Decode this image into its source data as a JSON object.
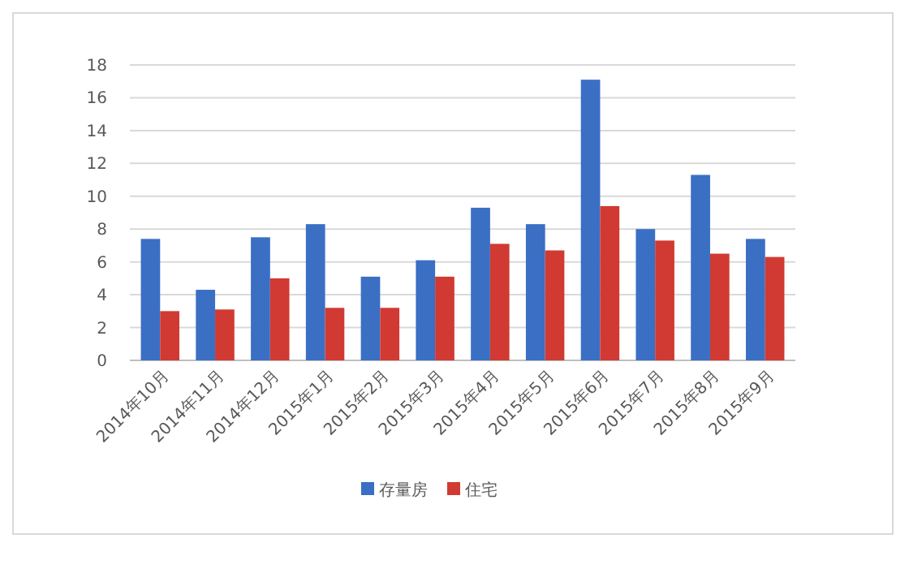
{
  "chart_data": {
    "type": "bar",
    "categories": [
      "2014年10月",
      "2014年11月",
      "2014年12月",
      "2015年1月",
      "2015年2月",
      "2015年3月",
      "2015年4月",
      "2015年5月",
      "2015年6月",
      "2015年7月",
      "2015年8月",
      "2015年9月"
    ],
    "series": [
      {
        "name": "存量房",
        "color": "#3a6fc4",
        "values": [
          7.4,
          4.3,
          7.5,
          8.3,
          5.1,
          6.1,
          9.3,
          8.3,
          17.1,
          8.0,
          11.3,
          7.4
        ]
      },
      {
        "name": "住宅",
        "color": "#d03a32",
        "values": [
          3.0,
          3.1,
          5.0,
          3.2,
          3.2,
          5.1,
          7.1,
          6.7,
          9.4,
          7.3,
          6.5,
          6.3
        ]
      }
    ],
    "ylim": [
      0,
      18
    ],
    "yticks": [
      0,
      2,
      4,
      6,
      8,
      10,
      12,
      14,
      16,
      18
    ],
    "grid": "y",
    "legend": "bottom"
  }
}
